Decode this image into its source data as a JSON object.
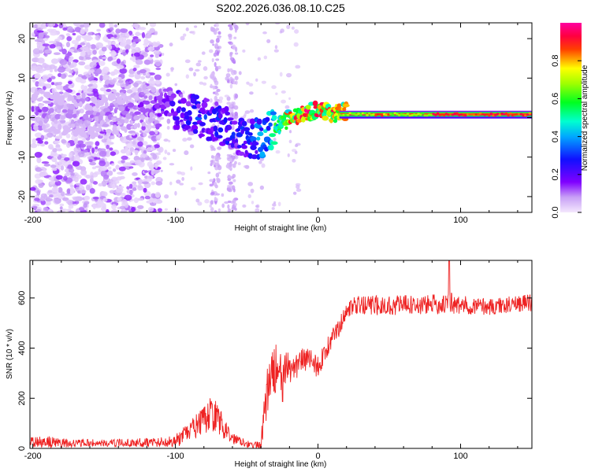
{
  "title": "S202.2026.036.08.10.C25",
  "colors": {
    "background": "#ffffff",
    "axes": "#000000",
    "snr_line": "#ee2222",
    "spec_low": "#6a00e0",
    "spec_high": "#ff0000"
  },
  "chart_data": [
    {
      "type": "heatmap",
      "title": "S202.2026.036.08.10.C25",
      "xlabel": "Height of straight line (km)",
      "ylabel": "Frequency (Hz)",
      "xlim": [
        -202,
        150
      ],
      "ylim": [
        -24,
        24
      ],
      "x_ticks": [
        -200,
        -100,
        0,
        100
      ],
      "x_tick_labels": [
        "-200",
        "-100",
        "0",
        "100"
      ],
      "y_ticks": [
        -20,
        -10,
        0,
        10,
        20
      ],
      "y_tick_labels": [
        "-20",
        "-10",
        "0",
        "10",
        "20"
      ],
      "colorbar": {
        "label": "Normalized spectral amplitude",
        "range": [
          0,
          1
        ],
        "ticks": [
          0,
          0.2,
          0.4,
          0.6,
          0.8
        ],
        "tick_labels": [
          "0.0",
          "0.2",
          "0.4",
          "0.6",
          "0.8"
        ],
        "colormap": "rainbow (violet→blue→cyan→green→yellow→red→magenta)"
      },
      "ridge": {
        "x": [
          -200,
          -180,
          -160,
          -140,
          -120,
          -100,
          -80,
          -60,
          -50,
          -40,
          -30,
          -20,
          -10,
          0,
          10,
          20,
          40,
          60,
          80,
          100,
          120,
          150
        ],
        "freq": [
          2,
          1,
          0,
          1,
          3,
          2,
          0,
          -3,
          -6,
          -5,
          -3,
          0,
          1,
          2,
          1,
          1.5,
          1.5,
          1,
          1,
          0.5,
          0.5,
          0.5
        ],
        "amplitude": [
          0.12,
          0.1,
          0.1,
          0.12,
          0.15,
          0.25,
          0.3,
          0.3,
          0.3,
          0.4,
          0.55,
          0.8,
          0.85,
          0.85,
          0.8,
          0.75,
          0.8,
          0.75,
          0.8,
          0.9,
          0.9,
          0.9
        ]
      },
      "noise_region": {
        "x_range": [
          -200,
          -110
        ],
        "freq_range": [
          -24,
          24
        ],
        "amplitude": [
          0.02,
          0.15
        ]
      }
    },
    {
      "type": "line",
      "xlabel": "Height of straight line (km)",
      "ylabel": "SNR (10 * v/v)",
      "xlim": [
        -202,
        150
      ],
      "ylim": [
        0,
        750
      ],
      "x_ticks": [
        -200,
        -100,
        0,
        100
      ],
      "x_tick_labels": [
        "-200",
        "-100",
        "0",
        "100"
      ],
      "y_ticks": [
        0,
        200,
        400,
        600
      ],
      "y_tick_labels": [
        "0",
        "200",
        "400",
        "600"
      ],
      "series": [
        {
          "name": "SNR",
          "x": [
            -200,
            -190,
            -180,
            -170,
            -160,
            -150,
            -140,
            -130,
            -120,
            -110,
            -100,
            -95,
            -90,
            -85,
            -80,
            -75,
            -70,
            -65,
            -60,
            -55,
            -50,
            -45,
            -40,
            -38,
            -35,
            -32,
            -30,
            -27,
            -25,
            -22,
            -20,
            -15,
            -12,
            -10,
            -5,
            0,
            5,
            10,
            12,
            15,
            20,
            30,
            40,
            50,
            60,
            70,
            80,
            90,
            92,
            95,
            100,
            110,
            120,
            130,
            140,
            150
          ],
          "base": [
            25,
            25,
            20,
            20,
            22,
            20,
            22,
            22,
            25,
            25,
            30,
            45,
            70,
            90,
            110,
            140,
            120,
            70,
            40,
            35,
            20,
            10,
            15,
            120,
            240,
            290,
            320,
            300,
            250,
            310,
            320,
            330,
            360,
            350,
            360,
            320,
            390,
            430,
            470,
            480,
            560,
            570,
            570,
            570,
            575,
            570,
            575,
            575,
            600,
            570,
            570,
            570,
            565,
            570,
            580,
            580
          ],
          "noise": [
            20,
            25,
            20,
            15,
            15,
            15,
            15,
            15,
            20,
            20,
            25,
            35,
            40,
            50,
            55,
            70,
            60,
            40,
            25,
            20,
            15,
            10,
            30,
            80,
            110,
            110,
            100,
            100,
            100,
            80,
            70,
            60,
            50,
            50,
            40,
            50,
            40,
            40,
            35,
            40,
            35,
            40,
            40,
            40,
            40,
            40,
            40,
            40,
            60,
            40,
            40,
            35,
            35,
            35,
            35,
            35
          ],
          "spike": {
            "x": 92,
            "y": 750
          }
        }
      ]
    }
  ]
}
